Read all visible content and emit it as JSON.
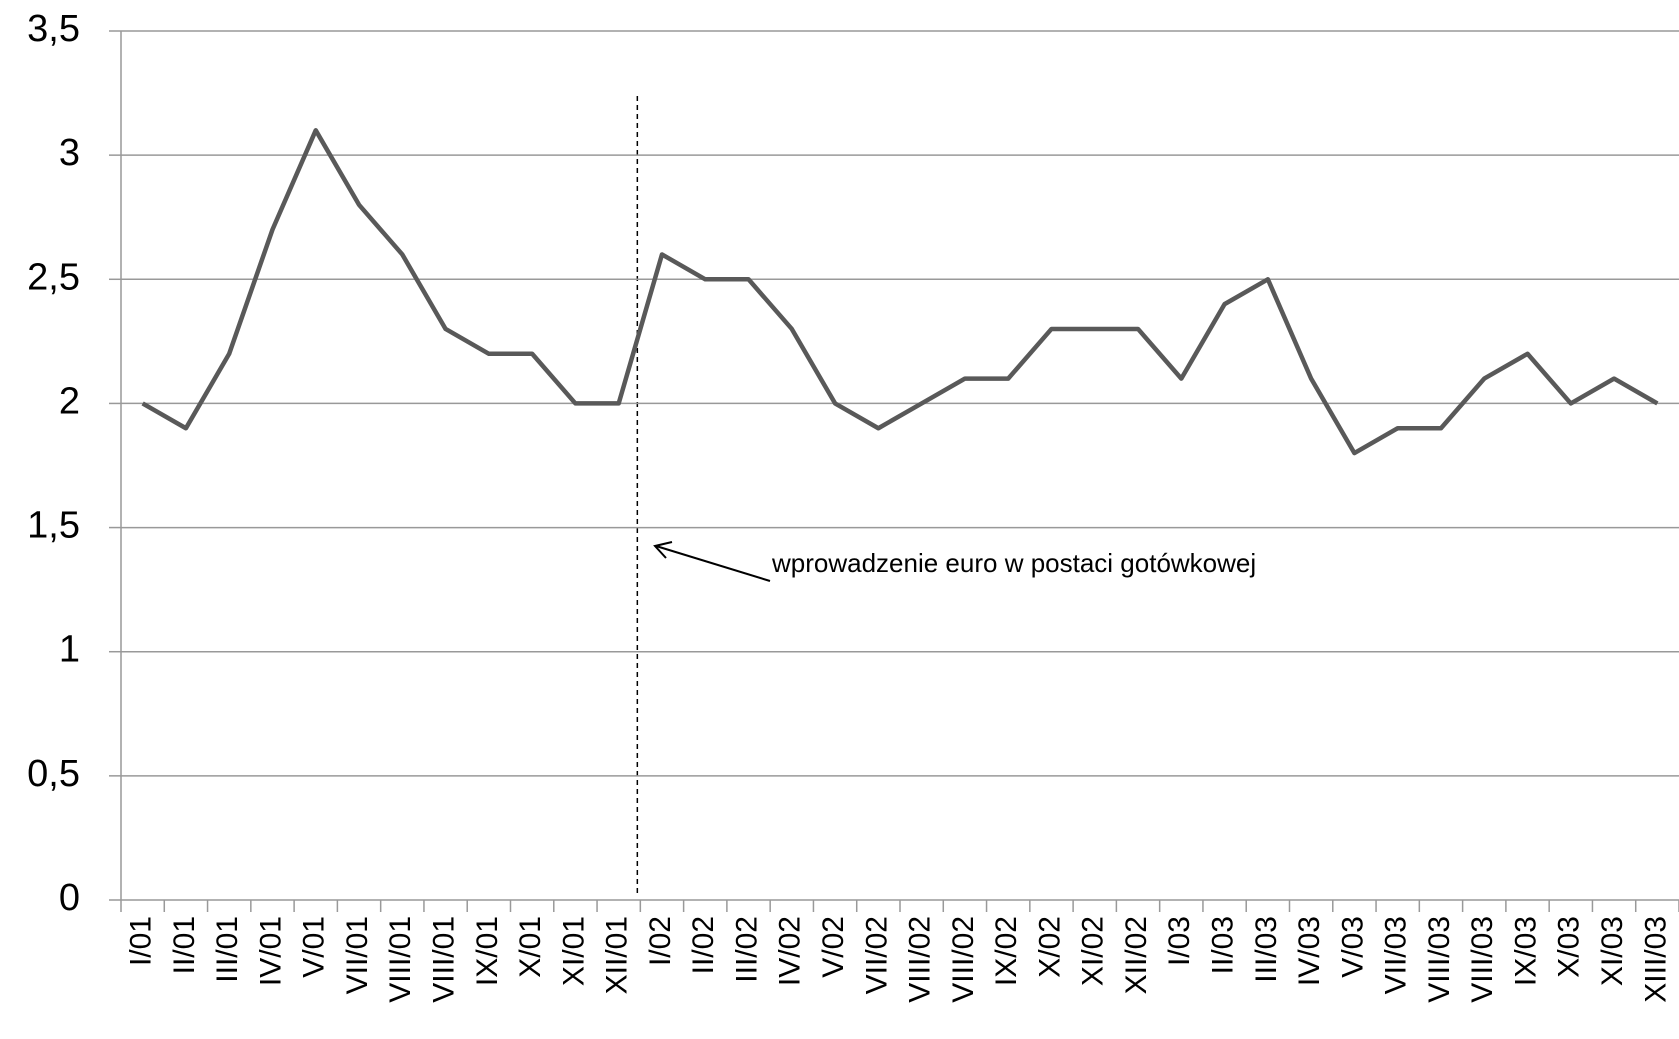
{
  "chart_data": {
    "type": "line",
    "categories": [
      "I/01",
      "II/01",
      "III/01",
      "IV/01",
      "V/01",
      "VII/01",
      "VIII/01",
      "VIII/01",
      "IX/01",
      "X/01",
      "XI/01",
      "XII/01",
      "I/02",
      "II/02",
      "III/02",
      "IV/02",
      "V/02",
      "VII/02",
      "VIII/02",
      "VIII/02",
      "IX/02",
      "X/02",
      "XI/02",
      "XII/02",
      "I/03",
      "II/03",
      "III/03",
      "IV/03",
      "V/03",
      "VII/03",
      "VIII/03",
      "VIII/03",
      "IX/03",
      "X/03",
      "XI/03",
      "XIII/03"
    ],
    "values": [
      2.0,
      1.9,
      2.2,
      2.7,
      3.1,
      2.8,
      2.6,
      2.3,
      2.2,
      2.2,
      2.0,
      2.0,
      2.6,
      2.5,
      2.5,
      2.3,
      2.0,
      1.9,
      2.0,
      2.1,
      2.1,
      2.3,
      2.3,
      2.3,
      2.1,
      2.4,
      2.5,
      2.1,
      1.8,
      1.9,
      1.9,
      2.1,
      2.2,
      2.0,
      2.1,
      2.0
    ],
    "color": "#595959",
    "ylim": [
      0,
      3.5
    ],
    "yticks": [
      0,
      {
        "value": 0.5,
        "label": "0,5"
      },
      1,
      {
        "value": 1.5,
        "label": "1,5"
      },
      2,
      {
        "value": 2.5,
        "label": "2,5"
      },
      3,
      {
        "value": 3.5,
        "label": "3,5"
      }
    ],
    "grid": true,
    "annotation": "wprowadzenie euro w postaci gotówkowej"
  }
}
